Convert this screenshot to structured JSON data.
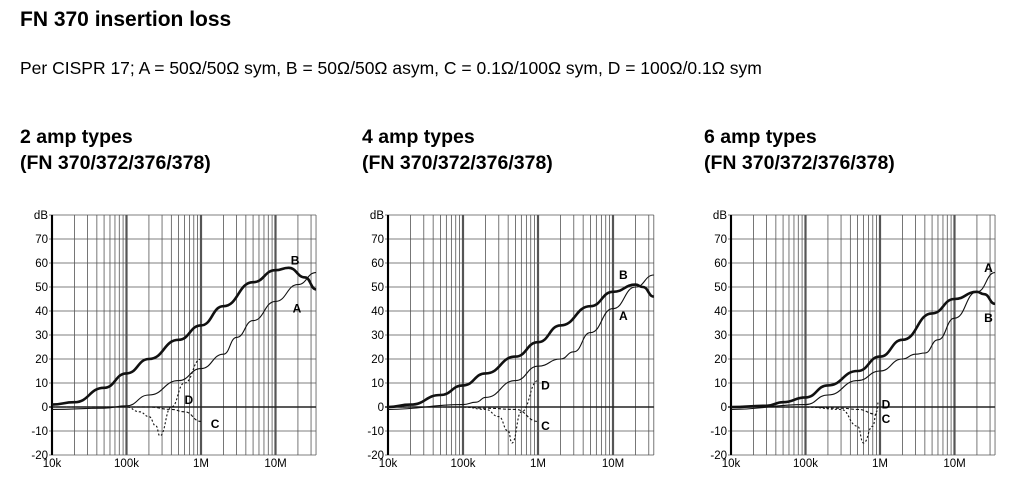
{
  "title": "FN 370 insertion loss",
  "subtitle": "Per CISPR 17; A = 50Ω/50Ω sym, B = 50Ω/50Ω asym, C = 0.1Ω/100Ω sym, D = 100Ω/0.1Ω sym",
  "chart_data": [
    {
      "type": "line",
      "title_line1": "2 amp types",
      "title_line2": "(FN 370/372/376/378)",
      "ylabel": "dB",
      "xscale": "log",
      "xlim": [
        10000,
        35000000
      ],
      "ylim": [
        -20,
        80
      ],
      "xticks": [
        {
          "v": 10000,
          "label": "10k"
        },
        {
          "v": 100000,
          "label": "100k"
        },
        {
          "v": 1000000,
          "label": "1M"
        },
        {
          "v": 10000000,
          "label": "10M"
        }
      ],
      "yticks": [
        {
          "v": 80,
          "label": "dB"
        },
        {
          "v": 70,
          "label": "70"
        },
        {
          "v": 60,
          "label": "60"
        },
        {
          "v": 50,
          "label": "50"
        },
        {
          "v": 40,
          "label": "40"
        },
        {
          "v": 30,
          "label": "30"
        },
        {
          "v": 20,
          "label": "20"
        },
        {
          "v": 10,
          "label": "10"
        },
        {
          "v": 0,
          "label": "0"
        },
        {
          "v": -10,
          "label": "-10"
        },
        {
          "v": -20,
          "label": "-20"
        }
      ],
      "series": [
        {
          "name": "A",
          "style": "thin",
          "label_at": [
            17000000,
            41
          ],
          "x": [
            10000,
            50000,
            100000,
            200000,
            500000,
            1000000,
            2000000,
            3000000,
            5000000,
            10000000,
            20000000,
            35000000
          ],
          "y": [
            -1,
            -0.5,
            0.5,
            5,
            11,
            16,
            22,
            29,
            36,
            44,
            51,
            56
          ]
        },
        {
          "name": "B",
          "style": "thick",
          "label_at": [
            16000000,
            61
          ],
          "x": [
            10000,
            20000,
            50000,
            100000,
            200000,
            500000,
            1000000,
            2000000,
            5000000,
            10000000,
            15000000,
            25000000,
            35000000
          ],
          "y": [
            1,
            2,
            8,
            14,
            20,
            28,
            34,
            42,
            52,
            57,
            58,
            54,
            49
          ]
        },
        {
          "name": "C",
          "style": "dashed",
          "label_at": [
            1350000,
            -7
          ],
          "x": [
            10000,
            100000,
            200000,
            400000,
            600000,
            1000000
          ],
          "y": [
            0,
            0,
            0,
            -1,
            -2,
            -6
          ]
        },
        {
          "name": "D",
          "style": "dotted",
          "label_at": [
            600000,
            3
          ],
          "x": [
            10000,
            100000,
            150000,
            200000,
            250000,
            280000,
            400000,
            600000,
            1000000
          ],
          "y": [
            0,
            0,
            -2,
            -4,
            -8,
            -12,
            0,
            10,
            20
          ]
        }
      ]
    },
    {
      "type": "line",
      "title_line1": "4 amp types",
      "title_line2": "(FN 370/372/376/378)",
      "ylabel": "dB",
      "xscale": "log",
      "xlim": [
        10000,
        35000000
      ],
      "ylim": [
        -20,
        80
      ],
      "xticks": [
        {
          "v": 10000,
          "label": "10k"
        },
        {
          "v": 100000,
          "label": "100k"
        },
        {
          "v": 1000000,
          "label": "1M"
        },
        {
          "v": 10000000,
          "label": "10M"
        }
      ],
      "yticks": [
        {
          "v": 80,
          "label": "dB"
        },
        {
          "v": 70,
          "label": "70"
        },
        {
          "v": 60,
          "label": "60"
        },
        {
          "v": 50,
          "label": "50"
        },
        {
          "v": 40,
          "label": "40"
        },
        {
          "v": 30,
          "label": "30"
        },
        {
          "v": 20,
          "label": "20"
        },
        {
          "v": 10,
          "label": "10"
        },
        {
          "v": 0,
          "label": "0"
        },
        {
          "v": -10,
          "label": "-10"
        },
        {
          "v": -20,
          "label": "-20"
        }
      ],
      "series": [
        {
          "name": "A",
          "style": "thin",
          "label_at": [
            12000000,
            38
          ],
          "x": [
            10000,
            100000,
            150000,
            200000,
            500000,
            1000000,
            2000000,
            3000000,
            5000000,
            10000000,
            20000000,
            35000000
          ],
          "y": [
            -1,
            1,
            2,
            4,
            11,
            17,
            20,
            23,
            31,
            41,
            50,
            55
          ]
        },
        {
          "name": "B",
          "style": "thick",
          "label_at": [
            12000000,
            55
          ],
          "x": [
            10000,
            20000,
            50000,
            100000,
            200000,
            500000,
            1000000,
            2000000,
            5000000,
            10000000,
            20000000,
            25000000,
            35000000
          ],
          "y": [
            0,
            1,
            5,
            9,
            14,
            21,
            27,
            34,
            42,
            48,
            51,
            50,
            46
          ]
        },
        {
          "name": "C",
          "style": "dashed",
          "label_at": [
            1100000,
            -8
          ],
          "x": [
            10000,
            100000,
            200000,
            500000,
            1000000
          ],
          "y": [
            0,
            0,
            -0.5,
            -1,
            -6
          ]
        },
        {
          "name": "D",
          "style": "dotted",
          "label_at": [
            1100000,
            9
          ],
          "x": [
            10000,
            100000,
            200000,
            300000,
            400000,
            450000,
            600000,
            1000000
          ],
          "y": [
            0,
            0,
            -1,
            -4,
            -10,
            -15,
            -2,
            11
          ]
        }
      ]
    },
    {
      "type": "line",
      "title_line1": "6 amp types",
      "title_line2": "(FN 370/372/376/378)",
      "ylabel": "dB",
      "xscale": "log",
      "xlim": [
        10000,
        35000000
      ],
      "ylim": [
        -20,
        80
      ],
      "xticks": [
        {
          "v": 10000,
          "label": "10k"
        },
        {
          "v": 100000,
          "label": "100k"
        },
        {
          "v": 1000000,
          "label": "1M"
        },
        {
          "v": 10000000,
          "label": "10M"
        }
      ],
      "yticks": [
        {
          "v": 80,
          "label": "dB"
        },
        {
          "v": 70,
          "label": "70"
        },
        {
          "v": 60,
          "label": "60"
        },
        {
          "v": 50,
          "label": "50"
        },
        {
          "v": 40,
          "label": "40"
        },
        {
          "v": 30,
          "label": "30"
        },
        {
          "v": 20,
          "label": "20"
        },
        {
          "v": 10,
          "label": "10"
        },
        {
          "v": 0,
          "label": "0"
        },
        {
          "v": -10,
          "label": "-10"
        },
        {
          "v": -20,
          "label": "-20"
        }
      ],
      "series": [
        {
          "name": "A",
          "style": "thin",
          "label_at": [
            25000000,
            58
          ],
          "x": [
            10000,
            100000,
            200000,
            500000,
            1000000,
            2000000,
            3000000,
            4000000,
            6000000,
            10000000,
            20000000,
            35000000
          ],
          "y": [
            -1,
            1,
            5,
            11,
            15,
            20,
            22,
            22.5,
            28,
            37,
            48,
            56
          ]
        },
        {
          "name": "B",
          "style": "thick",
          "label_at": [
            25000000,
            37
          ],
          "x": [
            10000,
            30000,
            50000,
            100000,
            200000,
            500000,
            1000000,
            2000000,
            5000000,
            10000000,
            20000000,
            25000000,
            35000000
          ],
          "y": [
            0,
            0.5,
            2,
            4,
            9,
            15,
            21,
            28,
            39,
            45,
            48,
            47,
            43
          ]
        },
        {
          "name": "C",
          "style": "dashed",
          "label_at": [
            1050000,
            -5
          ],
          "x": [
            10000,
            100000,
            300000,
            500000,
            900000
          ],
          "y": [
            0,
            0,
            -0.5,
            -1,
            -3
          ]
        },
        {
          "name": "D",
          "style": "dotted",
          "label_at": [
            1050000,
            1
          ],
          "x": [
            10000,
            100000,
            300000,
            500000,
            600000,
            800000,
            900000,
            950000
          ],
          "y": [
            0,
            0,
            -1,
            -8,
            -15,
            -8,
            -2,
            2
          ]
        }
      ]
    }
  ]
}
